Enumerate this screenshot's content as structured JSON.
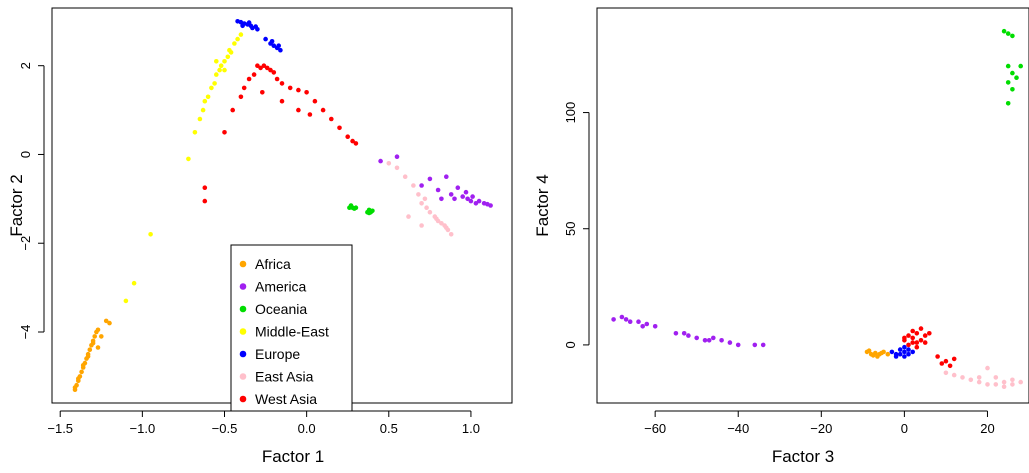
{
  "chart_data": [
    {
      "type": "scatter",
      "xlabel": "Factor 1",
      "ylabel": "Factor 2",
      "xlim": [
        -1.55,
        1.25
      ],
      "ylim": [
        -5.6,
        3.3
      ],
      "xticks": [
        {
          "value": -1.5,
          "label": "−1.5"
        },
        {
          "value": -1.0,
          "label": "−1.0"
        },
        {
          "value": -0.5,
          "label": "−0.5"
        },
        {
          "value": 0.0,
          "label": "0.0"
        },
        {
          "value": 0.5,
          "label": "0.5"
        },
        {
          "value": 1.0,
          "label": "1.0"
        }
      ],
      "yticks": [
        {
          "value": -4,
          "label": "−4"
        },
        {
          "value": -2,
          "label": "−2"
        },
        {
          "value": 0,
          "label": "0"
        },
        {
          "value": 2,
          "label": "2"
        }
      ],
      "legend": {
        "placement": "bottom-center",
        "entries": [
          {
            "name": "Africa",
            "color": "#FFA500"
          },
          {
            "name": "America",
            "color": "#A020F0"
          },
          {
            "name": "Oceania",
            "color": "#00DD00"
          },
          {
            "name": "Middle-East",
            "color": "#FFFF00"
          },
          {
            "name": "Europe",
            "color": "#0000FF"
          },
          {
            "name": "East Asia",
            "color": "#FFC0CB"
          },
          {
            "name": "West Asia",
            "color": "#FF0000"
          }
        ]
      },
      "series": [
        {
          "color": "#FFA500",
          "points": [
            [
              -1.41,
              -5.3
            ],
            [
              -1.4,
              -5.2
            ],
            [
              -1.39,
              -5.1
            ],
            [
              -1.38,
              -5.0
            ],
            [
              -1.37,
              -4.9
            ],
            [
              -1.36,
              -4.8
            ],
            [
              -1.35,
              -4.7
            ],
            [
              -1.34,
              -4.6
            ],
            [
              -1.33,
              -4.5
            ],
            [
              -1.32,
              -4.4
            ],
            [
              -1.31,
              -4.3
            ],
            [
              -1.3,
              -4.2
            ],
            [
              -1.29,
              -4.1
            ],
            [
              -1.28,
              -4.0
            ],
            [
              -1.27,
              -4.35
            ],
            [
              -1.25,
              -4.1
            ],
            [
              -1.22,
              -3.75
            ],
            [
              -1.2,
              -3.8
            ],
            [
              -1.41,
              -5.25
            ],
            [
              -1.39,
              -5.05
            ],
            [
              -1.36,
              -4.75
            ],
            [
              -1.33,
              -4.55
            ],
            [
              -1.3,
              -4.25
            ],
            [
              -1.27,
              -3.95
            ]
          ]
        },
        {
          "color": "#A020F0",
          "points": [
            [
              0.45,
              -0.15
            ],
            [
              0.55,
              -0.05
            ],
            [
              0.7,
              -0.7
            ],
            [
              0.75,
              -0.55
            ],
            [
              0.8,
              -0.8
            ],
            [
              0.85,
              -0.5
            ],
            [
              0.88,
              -0.9
            ],
            [
              0.92,
              -0.75
            ],
            [
              0.95,
              -0.95
            ],
            [
              0.98,
              -1.0
            ],
            [
              1.0,
              -1.05
            ],
            [
              1.03,
              -1.1
            ],
            [
              1.05,
              -1.05
            ],
            [
              1.08,
              -1.1
            ],
            [
              1.1,
              -1.12
            ],
            [
              1.12,
              -1.15
            ],
            [
              0.82,
              -1.0
            ],
            [
              0.9,
              -1.0
            ],
            [
              0.97,
              -0.85
            ],
            [
              1.01,
              -0.95
            ]
          ]
        },
        {
          "color": "#00DD00",
          "points": [
            [
              0.26,
              -1.2
            ],
            [
              0.27,
              -1.15
            ],
            [
              0.28,
              -1.2
            ],
            [
              0.29,
              -1.22
            ],
            [
              0.3,
              -1.2
            ],
            [
              0.37,
              -1.3
            ],
            [
              0.38,
              -1.25
            ],
            [
              0.39,
              -1.3
            ],
            [
              0.4,
              -1.27
            ],
            [
              0.38,
              -1.32
            ]
          ]
        },
        {
          "color": "#FFFF00",
          "points": [
            [
              -0.72,
              -0.1
            ],
            [
              -0.68,
              0.5
            ],
            [
              -0.65,
              0.8
            ],
            [
              -0.63,
              1.0
            ],
            [
              -0.62,
              1.2
            ],
            [
              -0.6,
              1.3
            ],
            [
              -0.58,
              1.5
            ],
            [
              -0.56,
              1.6
            ],
            [
              -0.55,
              1.8
            ],
            [
              -0.53,
              1.9
            ],
            [
              -0.52,
              2.0
            ],
            [
              -0.5,
              2.1
            ],
            [
              -0.48,
              2.2
            ],
            [
              -0.46,
              2.3
            ],
            [
              -0.44,
              2.5
            ],
            [
              -0.42,
              2.6
            ],
            [
              -0.4,
              2.7
            ],
            [
              -0.55,
              2.1
            ],
            [
              -0.5,
              1.9
            ],
            [
              -0.47,
              2.35
            ],
            [
              -0.95,
              -1.8
            ],
            [
              -1.05,
              -2.9
            ],
            [
              -1.1,
              -3.3
            ]
          ]
        },
        {
          "color": "#0000FF",
          "points": [
            [
              -0.42,
              3.0
            ],
            [
              -0.4,
              2.98
            ],
            [
              -0.38,
              2.95
            ],
            [
              -0.36,
              2.93
            ],
            [
              -0.34,
              2.9
            ],
            [
              -0.33,
              2.85
            ],
            [
              -0.31,
              2.88
            ],
            [
              -0.3,
              2.82
            ],
            [
              -0.25,
              2.6
            ],
            [
              -0.22,
              2.5
            ],
            [
              -0.2,
              2.45
            ],
            [
              -0.18,
              2.4
            ],
            [
              -0.16,
              2.35
            ],
            [
              -0.39,
              2.9
            ],
            [
              -0.35,
              2.97
            ],
            [
              -0.21,
              2.55
            ],
            [
              -0.17,
              2.45
            ]
          ]
        },
        {
          "color": "#FFC0CB",
          "points": [
            [
              0.5,
              -0.2
            ],
            [
              0.55,
              -0.3
            ],
            [
              0.6,
              -0.5
            ],
            [
              0.65,
              -0.7
            ],
            [
              0.68,
              -0.9
            ],
            [
              0.7,
              -1.1
            ],
            [
              0.73,
              -1.2
            ],
            [
              0.75,
              -1.3
            ],
            [
              0.78,
              -1.4
            ],
            [
              0.8,
              -1.5
            ],
            [
              0.82,
              -1.55
            ],
            [
              0.84,
              -1.6
            ],
            [
              0.86,
              -1.7
            ],
            [
              0.88,
              -1.8
            ],
            [
              0.72,
              -1.0
            ],
            [
              0.79,
              -1.45
            ],
            [
              0.85,
              -1.65
            ],
            [
              0.62,
              -1.4
            ],
            [
              0.7,
              -1.6
            ]
          ]
        },
        {
          "color": "#FF0000",
          "points": [
            [
              -0.3,
              2.0
            ],
            [
              -0.28,
              1.95
            ],
            [
              -0.26,
              2.0
            ],
            [
              -0.24,
              1.95
            ],
            [
              -0.22,
              1.9
            ],
            [
              -0.2,
              1.85
            ],
            [
              -0.18,
              1.7
            ],
            [
              -0.15,
              1.6
            ],
            [
              -0.1,
              1.5
            ],
            [
              -0.05,
              1.45
            ],
            [
              0.0,
              1.4
            ],
            [
              0.05,
              1.2
            ],
            [
              0.1,
              1.0
            ],
            [
              0.15,
              0.8
            ],
            [
              0.2,
              0.6
            ],
            [
              0.25,
              0.4
            ],
            [
              0.28,
              0.3
            ],
            [
              0.3,
              0.25
            ],
            [
              -0.35,
              1.7
            ],
            [
              -0.4,
              1.3
            ],
            [
              -0.45,
              1.0
            ],
            [
              -0.5,
              0.5
            ],
            [
              -0.38,
              1.5
            ],
            [
              -0.32,
              1.8
            ],
            [
              -0.62,
              -0.75
            ],
            [
              -0.62,
              -1.05
            ],
            [
              -0.27,
              1.4
            ],
            [
              -0.15,
              1.2
            ],
            [
              -0.05,
              1.0
            ],
            [
              0.02,
              0.9
            ]
          ]
        }
      ]
    },
    {
      "type": "scatter",
      "xlabel": "Factor 3",
      "ylabel": "Factor 4",
      "xlim": [
        -74,
        30
      ],
      "ylim": [
        -25,
        145
      ],
      "xticks": [
        {
          "value": -60,
          "label": "−60"
        },
        {
          "value": -40,
          "label": "−40"
        },
        {
          "value": -20,
          "label": "−20"
        },
        {
          "value": 0,
          "label": "0"
        },
        {
          "value": 20,
          "label": "20"
        }
      ],
      "yticks": [
        {
          "value": 0,
          "label": "0"
        },
        {
          "value": 50,
          "label": "50"
        },
        {
          "value": 100,
          "label": "100"
        }
      ],
      "series": [
        {
          "color": "#FFA500",
          "points": [
            [
              -9,
              -3
            ],
            [
              -8,
              -4
            ],
            [
              -7,
              -3.5
            ],
            [
              -6,
              -4
            ],
            [
              -5,
              -3
            ],
            [
              -4,
              -4
            ],
            [
              -8.5,
              -2.5
            ],
            [
              -6.5,
              -5
            ],
            [
              -5.5,
              -3.5
            ],
            [
              -7.5,
              -4.5
            ]
          ]
        },
        {
          "color": "#A020F0",
          "points": [
            [
              -70,
              11
            ],
            [
              -68,
              12
            ],
            [
              -66,
              10
            ],
            [
              -64,
              10
            ],
            [
              -62,
              9
            ],
            [
              -60,
              8
            ],
            [
              -55,
              5
            ],
            [
              -52,
              4
            ],
            [
              -50,
              3
            ],
            [
              -48,
              2
            ],
            [
              -46,
              3
            ],
            [
              -44,
              2
            ],
            [
              -42,
              1
            ],
            [
              -40,
              0
            ],
            [
              -36,
              0
            ],
            [
              -34,
              0
            ],
            [
              -67,
              11
            ],
            [
              -63,
              8
            ],
            [
              -53,
              5
            ],
            [
              -47,
              2
            ]
          ]
        },
        {
          "color": "#00DD00",
          "points": [
            [
              24,
              135
            ],
            [
              25,
              134
            ],
            [
              26,
              133
            ],
            [
              25,
              120
            ],
            [
              26,
              117
            ],
            [
              27,
              115
            ],
            [
              25,
              113
            ],
            [
              26,
              110
            ],
            [
              28,
              120
            ],
            [
              25,
              104
            ]
          ]
        },
        {
          "color": "#FFFF00",
          "points": []
        },
        {
          "color": "#0000FF",
          "points": [
            [
              -3,
              -3
            ],
            [
              -2,
              -4
            ],
            [
              -1,
              -2
            ],
            [
              0,
              -3
            ],
            [
              1,
              -4
            ],
            [
              -2,
              -5
            ],
            [
              0,
              -5
            ],
            [
              1,
              -2
            ],
            [
              -1,
              -4
            ],
            [
              2,
              -3
            ],
            [
              0,
              -1
            ]
          ]
        },
        {
          "color": "#FFC0CB",
          "points": [
            [
              10,
              -12
            ],
            [
              12,
              -13
            ],
            [
              14,
              -14
            ],
            [
              16,
              -15
            ],
            [
              18,
              -16
            ],
            [
              20,
              -17
            ],
            [
              22,
              -17
            ],
            [
              24,
              -16
            ],
            [
              26,
              -15
            ],
            [
              20,
              -10
            ],
            [
              22,
              -14
            ],
            [
              24,
              -18
            ],
            [
              26,
              -17
            ],
            [
              28,
              -16
            ],
            [
              18,
              -14
            ]
          ]
        },
        {
          "color": "#FF0000",
          "points": [
            [
              0,
              2
            ],
            [
              1,
              4
            ],
            [
              2,
              3
            ],
            [
              3,
              5
            ],
            [
              4,
              2
            ],
            [
              5,
              4
            ],
            [
              2,
              6
            ],
            [
              3,
              1
            ],
            [
              1,
              0
            ],
            [
              4,
              7
            ],
            [
              6,
              5
            ],
            [
              5,
              1
            ],
            [
              3,
              -1
            ],
            [
              8,
              -5
            ],
            [
              10,
              -7
            ],
            [
              11,
              -9
            ],
            [
              12,
              -6
            ],
            [
              9,
              -8
            ],
            [
              2,
              1
            ],
            [
              0,
              3
            ]
          ]
        }
      ]
    }
  ]
}
